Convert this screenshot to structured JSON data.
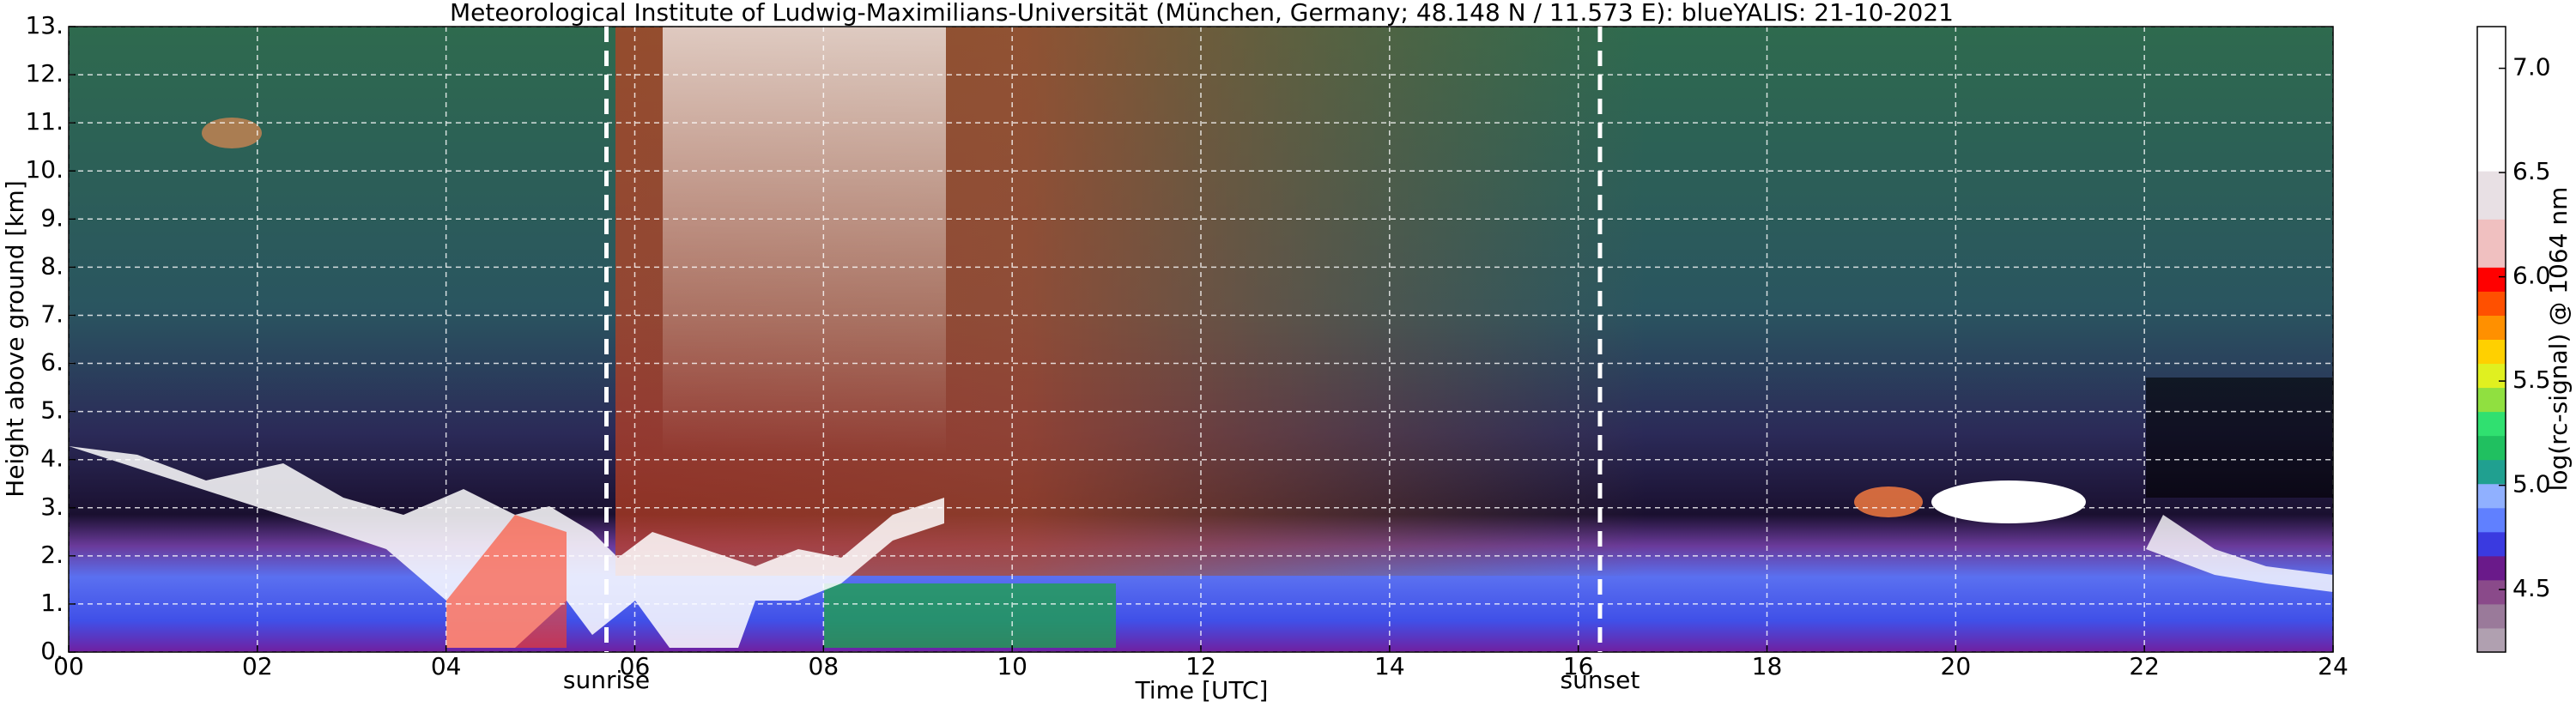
{
  "chart_data": {
    "type": "heatmap",
    "title": "Meteorological Institute of Ludwig-Maximilians-Universität (München, Germany; 48.148 N / 11.573 E):    blueYALIS: 21-10-2021",
    "x_label": "Time [UTC]",
    "y_label": "Height above ground [km]",
    "xlim": [
      0,
      24
    ],
    "xticks": [
      {
        "value": 0,
        "label": "00"
      },
      {
        "value": 2,
        "label": "02"
      },
      {
        "value": 4,
        "label": "04"
      },
      {
        "value": 6,
        "label": "06"
      },
      {
        "value": 8,
        "label": "08"
      },
      {
        "value": 10,
        "label": "10"
      },
      {
        "value": 12,
        "label": "12"
      },
      {
        "value": 14,
        "label": "14"
      },
      {
        "value": 16,
        "label": "16"
      },
      {
        "value": 18,
        "label": "18"
      },
      {
        "value": 20,
        "label": "20"
      },
      {
        "value": 22,
        "label": "22"
      },
      {
        "value": 24,
        "label": "24"
      }
    ],
    "ylim": [
      0,
      13
    ],
    "yticks": [
      {
        "value": 0,
        "label": "0."
      },
      {
        "value": 1,
        "label": "1."
      },
      {
        "value": 2,
        "label": "2."
      },
      {
        "value": 3,
        "label": "3."
      },
      {
        "value": 4,
        "label": "4."
      },
      {
        "value": 5,
        "label": "5."
      },
      {
        "value": 6,
        "label": "6."
      },
      {
        "value": 7,
        "label": "7."
      },
      {
        "value": 8,
        "label": "8."
      },
      {
        "value": 9,
        "label": "9."
      },
      {
        "value": 10,
        "label": "10."
      },
      {
        "value": 11,
        "label": "11."
      },
      {
        "value": 12,
        "label": "12."
      },
      {
        "value": 13,
        "label": "13."
      }
    ],
    "grid": true,
    "vlines": [
      {
        "x": 5.7,
        "label": "sunrise"
      },
      {
        "x": 16.23,
        "label": "sunset"
      }
    ],
    "colorbar": {
      "label": "log(rc-signal) @ 1064 nm",
      "lim": [
        4.2,
        7.2
      ],
      "ticks": [
        4.5,
        {
          "value": 5,
          "label": "5.0"
        },
        5.5,
        {
          "value": 6,
          "label": "6.0"
        },
        6.5,
        {
          "value": 7,
          "label": "7.0"
        }
      ],
      "colors": [
        "#b0a0b0",
        "#9a7a9a",
        "#8a4a8a",
        "#6a1a8a",
        "#3a3ae0",
        "#6080ff",
        "#90b0ff",
        "#20a090",
        "#20c060",
        "#30e070",
        "#90e040",
        "#e0f020",
        "#ffd000",
        "#ff9000",
        "#ff5000",
        "#ff0000",
        "#f0c0c0",
        "#f0c0c0",
        "#e8e0e4",
        "#e8e0e4",
        "#ffffff",
        "#ffffff",
        "#ffffff",
        "#ffffff",
        "#ffffff",
        "#ffffff"
      ]
    }
  }
}
